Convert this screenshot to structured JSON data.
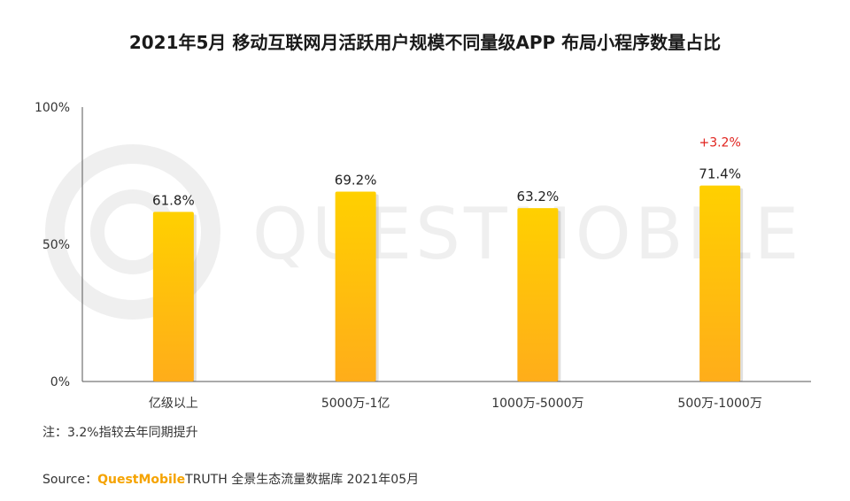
{
  "chart_data": {
    "type": "bar",
    "title": "2021年5月 移动互联网月活跃用户规模不同量级APP 布局小程序数量占比",
    "categories": [
      "亿级以上",
      "5000万-1亿",
      "1000万-5000万",
      "500万-1000万"
    ],
    "values": [
      61.8,
      69.2,
      63.2,
      71.4
    ],
    "value_labels": [
      "61.8%",
      "69.2%",
      "63.2%",
      "71.4%"
    ],
    "ylim": [
      0,
      100
    ],
    "yticks": [
      {
        "value": 0,
        "label": "0%"
      },
      {
        "value": 50,
        "label": "50%"
      },
      {
        "value": 100,
        "label": "100%"
      }
    ],
    "annotations": [
      {
        "category_index": 3,
        "text": "+3.2%",
        "color": "#e0211c"
      }
    ],
    "bar_colors": {
      "top": "#ffd000",
      "bottom": "#ffad1a"
    },
    "grid": false
  },
  "note": "注：3.2%指较去年同期提升",
  "source": {
    "prefix": "Source：",
    "brand": "QuestMobile",
    "suffix": "TRUTH 全景生态流量数据库 2021年05月"
  },
  "watermark": "QUESTMOBILE"
}
